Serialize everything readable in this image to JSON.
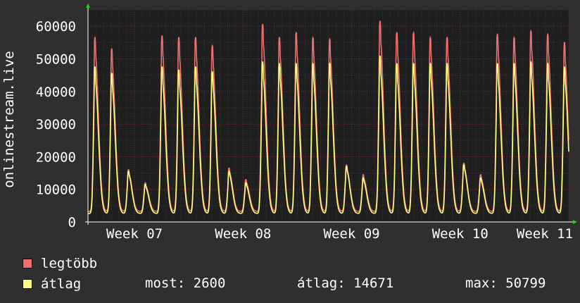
{
  "chart_data": {
    "type": "area",
    "title": "",
    "ylabel": "onlinestream.live",
    "xlabel": "",
    "ylim": [
      0,
      65000
    ],
    "y_ticks": [
      0,
      10000,
      20000,
      30000,
      40000,
      50000,
      60000
    ],
    "y_tick_labels": [
      "0",
      "10000",
      "20000",
      "30000",
      "40000",
      "50000",
      "60000"
    ],
    "x_tick_labels": [
      "Week 07",
      "Week 08",
      "Week 09",
      "Week 10",
      "Week 11"
    ],
    "x_label_days": [
      3,
      10,
      17,
      24,
      31
    ],
    "days_span": 31,
    "grid": true,
    "series": [
      {
        "name": "legtöbb",
        "color": "#f07070",
        "daily_peaks": [
          56500,
          53000,
          16000,
          12000,
          57000,
          56500,
          56500,
          54000,
          16500,
          13000,
          60500,
          56500,
          58000,
          56500,
          56000,
          17500,
          14500,
          61500,
          58000,
          58000,
          56500,
          56500,
          18000,
          14500,
          57500,
          56500,
          58500,
          57500,
          55000
        ]
      },
      {
        "name": "átlag",
        "color": "#ffff80",
        "daily_peaks": [
          47500,
          45500,
          15500,
          11500,
          47500,
          46500,
          47500,
          46000,
          15500,
          12000,
          49000,
          48500,
          48500,
          48500,
          48500,
          17000,
          13500,
          50799,
          48500,
          48500,
          48500,
          48500,
          17500,
          13500,
          48500,
          48500,
          49000,
          48500,
          47500
        ]
      }
    ],
    "first_peak_day": 0.1,
    "baseline_min": 2600
  },
  "legend": {
    "max_label": "legtöbb",
    "avg_label": "átlag"
  },
  "stats": {
    "most": "most: 2600",
    "atlag": "átlag: 14671",
    "max": "max: 50799"
  },
  "colors": {
    "background": "#2f2f2f",
    "plot_bg": "#1f1f1f",
    "grid_minor": "#3a3a3a",
    "grid_major": "#8a2020",
    "axis": "#ffffff",
    "arrow": "#22cc22",
    "max_line": "#f07070",
    "avg_line": "#ffff80"
  }
}
